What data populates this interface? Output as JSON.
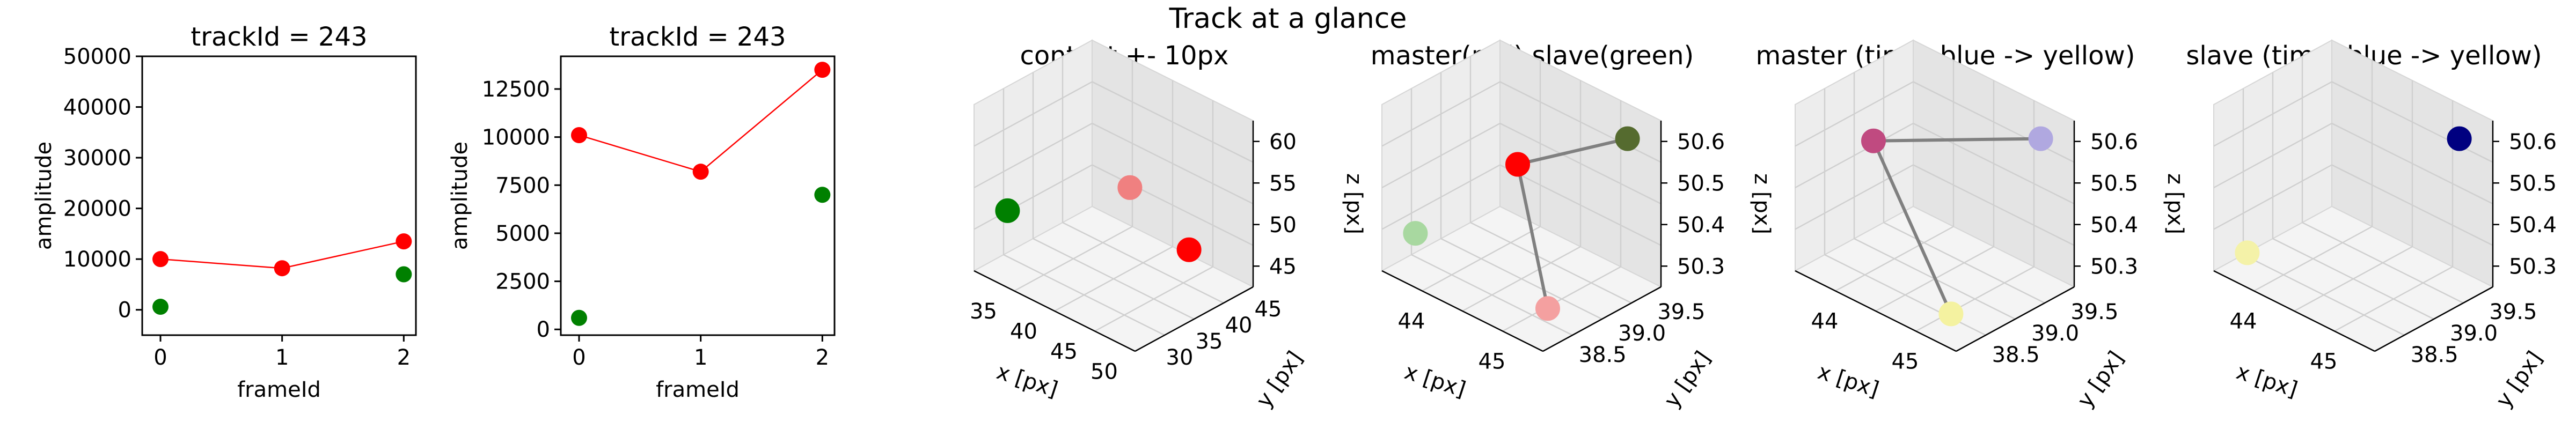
{
  "figure": {
    "suptitle": "Track at a glance"
  },
  "chart_data": [
    {
      "type": "scatter",
      "title": "trackId = 243",
      "xlabel": "frameId",
      "ylabel": "amplitude",
      "ylim": [
        -5000,
        50000
      ],
      "xlim": [
        -0.15,
        2.1
      ],
      "xticks": [
        "0",
        "1",
        "2"
      ],
      "yticks": [
        "0",
        "10000",
        "20000",
        "30000",
        "40000",
        "50000"
      ],
      "ytick_values": [
        0,
        10000,
        20000,
        30000,
        40000,
        50000
      ],
      "series": [
        {
          "color": "#ff0000",
          "x": [
            0,
            1,
            2
          ],
          "y": [
            10000,
            8200,
            13500
          ],
          "line": true
        },
        {
          "color": "#008000",
          "x": [
            0,
            2
          ],
          "y": [
            600,
            7000
          ],
          "line": false
        }
      ]
    },
    {
      "type": "scatter",
      "title": "trackId = 243",
      "xlabel": "frameId",
      "ylabel": "amplitude",
      "ylim": [
        -300,
        14200
      ],
      "xlim": [
        -0.15,
        2.1
      ],
      "xticks": [
        "0",
        "1",
        "2"
      ],
      "yticks": [
        "0",
        "2500",
        "5000",
        "7500",
        "10000",
        "12500"
      ],
      "ytick_values": [
        0,
        2500,
        5000,
        7500,
        10000,
        12500
      ],
      "series": [
        {
          "color": "#ff0000",
          "x": [
            0,
            1,
            2
          ],
          "y": [
            10100,
            8200,
            13500
          ],
          "line": true
        },
        {
          "color": "#008000",
          "x": [
            0,
            2
          ],
          "y": [
            600,
            7000
          ],
          "line": false
        }
      ]
    },
    {
      "type": "scatter3d",
      "title": "context +- 10px",
      "xlabel": "x [px]",
      "ylabel": "y [px]",
      "zlabel": "z [px]",
      "xticks": [
        "35",
        "40",
        "45",
        "50"
      ],
      "yticks": [
        "30",
        "35",
        "40",
        "45"
      ],
      "zticks": [
        "45",
        "50",
        "55",
        "60"
      ],
      "points": [
        {
          "x": 43,
          "y": 39,
          "z": 50.4,
          "color": "#008000"
        },
        {
          "x": 44.5,
          "y": 39.5,
          "z": 50.3,
          "color": "#ff0000"
        },
        {
          "x": 45,
          "y": 39,
          "z": 50.6,
          "color": "#f08080"
        }
      ]
    },
    {
      "type": "scatter3d",
      "title": "master(red) slave(green)",
      "xlabel": "x [px]",
      "ylabel": "y [px]",
      "zlabel": "z [px]",
      "xticks": [
        "44",
        "45"
      ],
      "yticks": [
        "38.5",
        "39.0",
        "39.5"
      ],
      "zticks": [
        "50.3",
        "50.4",
        "50.5",
        "50.6"
      ],
      "points": [
        {
          "x": 44.0,
          "y": 38.9,
          "z": 50.5,
          "color": "#ff0000"
        },
        {
          "x": 44.8,
          "y": 39.3,
          "z": 50.58,
          "color": "#556b2f"
        },
        {
          "x": 44.8,
          "y": 38.5,
          "z": 50.32,
          "color": "#f4a0a0"
        },
        {
          "x": 43.4,
          "y": 38.4,
          "z": 50.36,
          "color": "#a8d8a0"
        }
      ]
    },
    {
      "type": "scatter3d",
      "title": "master (time: blue -> yellow)",
      "xlabel": "x [px]",
      "ylabel": "y [px]",
      "zlabel": "z [px]",
      "xticks": [
        "44",
        "45"
      ],
      "yticks": [
        "38.5",
        "39.0",
        "39.5"
      ],
      "zticks": [
        "50.3",
        "50.4",
        "50.5",
        "50.6"
      ],
      "points": [
        {
          "x": 44.0,
          "y": 38.9,
          "z": 50.5,
          "color": "#c04a80"
        },
        {
          "x": 44.8,
          "y": 39.3,
          "z": 50.58,
          "color": "#b0a8e0"
        },
        {
          "x": 44.8,
          "y": 38.5,
          "z": 50.32,
          "color": "#f4f2a0"
        }
      ]
    },
    {
      "type": "scatter3d",
      "title": "slave (time: blue -> yellow)",
      "xlabel": "x [px]",
      "ylabel": "y [px]",
      "zlabel": "z [px]",
      "xticks": [
        "44",
        "45"
      ],
      "yticks": [
        "38.5",
        "39.0",
        "39.5"
      ],
      "zticks": [
        "50.3",
        "50.4",
        "50.5",
        "50.6"
      ],
      "points": [
        {
          "x": 45.3,
          "y": 39.6,
          "z": 50.58,
          "color": "#000080"
        },
        {
          "x": 43.4,
          "y": 38.4,
          "z": 50.36,
          "color": "#f4f2a8"
        }
      ]
    }
  ]
}
